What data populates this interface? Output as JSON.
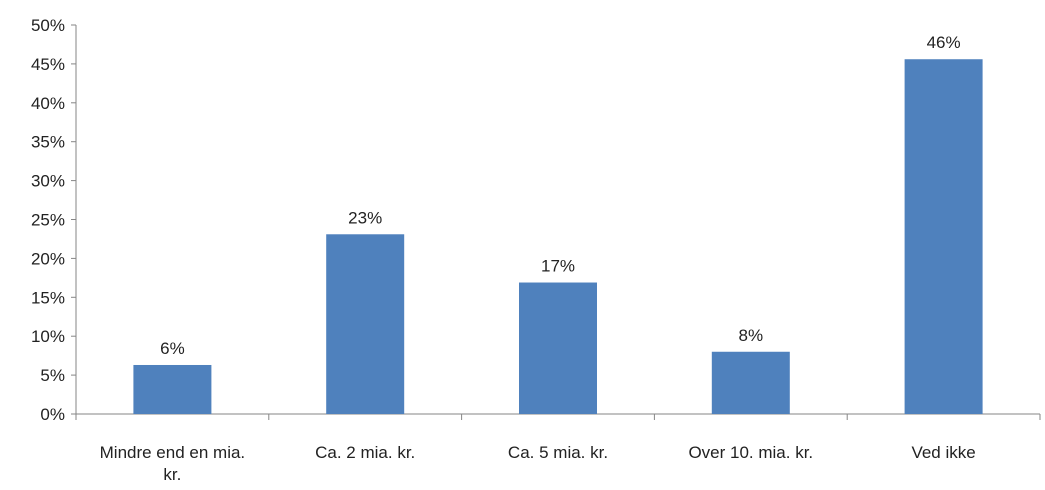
{
  "chart_data": {
    "type": "bar",
    "categories": [
      [
        "Mindre end en mia.",
        "kr."
      ],
      [
        "Ca. 2 mia. kr."
      ],
      [
        "Ca. 5 mia. kr."
      ],
      [
        "Over 10. mia. kr."
      ],
      [
        "Ved ikke"
      ]
    ],
    "values": [
      6.3,
      23.1,
      16.9,
      8.0,
      45.6
    ],
    "data_labels": [
      "6%",
      "23%",
      "17%",
      "8%",
      "46%"
    ],
    "yticks": [
      "0%",
      "5%",
      "10%",
      "15%",
      "20%",
      "25%",
      "30%",
      "35%",
      "40%",
      "45%",
      "50%"
    ],
    "ylim": [
      0,
      50
    ],
    "title": "",
    "xlabel": "",
    "ylabel": "",
    "grid": false,
    "legend": "none",
    "colors": {
      "bar": "#4F81BD",
      "axis": "#868686",
      "text": "#222222"
    }
  }
}
